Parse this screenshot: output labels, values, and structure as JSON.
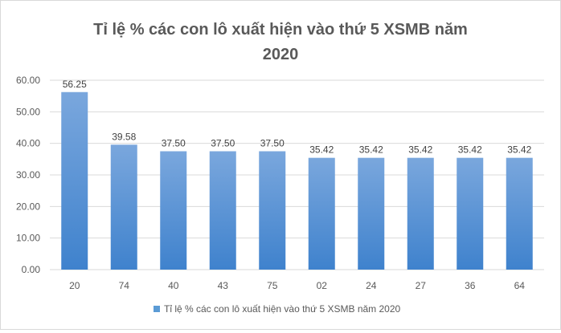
{
  "chart_data": {
    "type": "bar",
    "title_line1": "Tỉ lệ % các con lô xuất hiện vào thứ 5 XSMB năm",
    "title_line2": "2020",
    "categories": [
      "20",
      "74",
      "40",
      "43",
      "75",
      "02",
      "24",
      "27",
      "36",
      "64"
    ],
    "series": [
      {
        "name": "Tỉ lệ % các con lô xuất hiện vào thứ 5 XSMB năm 2020",
        "values": [
          56.25,
          39.58,
          37.5,
          37.5,
          37.5,
          35.42,
          35.42,
          35.42,
          35.42,
          35.42
        ],
        "data_labels": [
          "56.25",
          "39.58",
          "37.50",
          "37.50",
          "37.50",
          "35.42",
          "35.42",
          "35.42",
          "35.42",
          "35.42"
        ]
      }
    ],
    "y_ticks": [
      "0.00",
      "10.00",
      "20.00",
      "30.00",
      "40.00",
      "50.00",
      "60.00"
    ],
    "ylim": [
      0,
      60
    ],
    "grid": true,
    "legend_position": "bottom",
    "bar_color_top": "#7aa7dd",
    "bar_color_bottom": "#3f82cd",
    "grid_color": "#d9d9d9"
  }
}
